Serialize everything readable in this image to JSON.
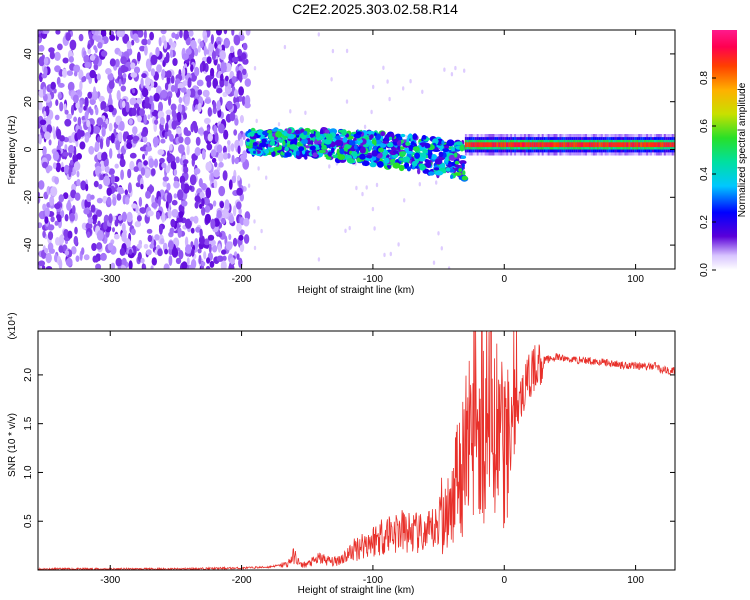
{
  "title": "C2E2.2025.303.02.58.R14",
  "colors": {
    "snr_line": "#e8302a",
    "background": "#ffffff",
    "axis": "#000000"
  },
  "chart_data": [
    {
      "type": "heatmap",
      "title": "C2E2.2025.303.02.58.R14",
      "xlabel": "Height of straight line (km)",
      "ylabel": "Frequency (Hz)",
      "xlim": [
        -355,
        130
      ],
      "ylim": [
        -50,
        50
      ],
      "x_ticks": [
        -300,
        -200,
        -100,
        0,
        100
      ],
      "y_ticks": [
        -40,
        -20,
        0,
        20,
        40
      ],
      "colorbar": {
        "label": "Normalized spectral amplitude",
        "range": [
          0.0,
          1.0
        ],
        "ticks": [
          "0.0",
          "0.2",
          "0.4",
          "0.6",
          "0.8"
        ],
        "colormap": [
          "#ffffff",
          "#b58cff",
          "#5a00d9",
          "#0000ff",
          "#00c8ff",
          "#00e0a0",
          "#28e028",
          "#c8e000",
          "#ffb000",
          "#ff4000",
          "#ff0050",
          "#ff1a8c"
        ]
      },
      "regions": [
        {
          "x_range": [
            -355,
            -195
          ],
          "description_values": {
            "freq_range": [
              -50,
              50
            ],
            "amplitude": 0.15
          }
        },
        {
          "x_range": [
            -195,
            -30
          ],
          "freq_center": 3,
          "freq_center_end": -5,
          "amplitude": 0.45
        },
        {
          "x_range": [
            -30,
            130
          ],
          "freq_center": 2,
          "amplitude": 0.9
        }
      ]
    },
    {
      "type": "line",
      "xlabel": "Height of straight line (km)",
      "ylabel": "SNR (10 * v/v)",
      "y_multiplier": "(x10⁴)",
      "xlim": [
        -355,
        130
      ],
      "ylim": [
        0.0,
        2.45
      ],
      "x_ticks": [
        -300,
        -200,
        -100,
        0,
        100
      ],
      "y_ticks": [
        0.5,
        1.0,
        1.5,
        2.0
      ],
      "y_tick_labels": [
        "0.5",
        "1.0",
        "1.5",
        "2.0"
      ],
      "series": [
        {
          "x": [
            -355,
            -300,
            -250,
            -200,
            -180,
            -165,
            -160,
            -155,
            -150,
            -140,
            -130,
            -120,
            -110,
            -100,
            -90,
            -80,
            -70,
            -60,
            -50,
            -45,
            -40,
            -35,
            -30,
            -25,
            -20,
            -15,
            -10,
            -5,
            0,
            5,
            10,
            15,
            20,
            25,
            30,
            40,
            50,
            60,
            70,
            80,
            90,
            100,
            110,
            115,
            120,
            130
          ],
          "y": [
            0.01,
            0.01,
            0.01,
            0.02,
            0.03,
            0.06,
            0.15,
            0.05,
            0.06,
            0.12,
            0.08,
            0.15,
            0.25,
            0.3,
            0.38,
            0.4,
            0.38,
            0.35,
            0.45,
            0.7,
            0.6,
            1.0,
            1.2,
            1.5,
            1.7,
            1.8,
            1.6,
            1.3,
            1.2,
            1.4,
            1.65,
            1.85,
            2.0,
            2.1,
            2.15,
            2.18,
            2.16,
            2.15,
            2.14,
            2.12,
            2.1,
            2.1,
            2.08,
            2.1,
            2.05,
            2.04
          ]
        }
      ]
    }
  ]
}
